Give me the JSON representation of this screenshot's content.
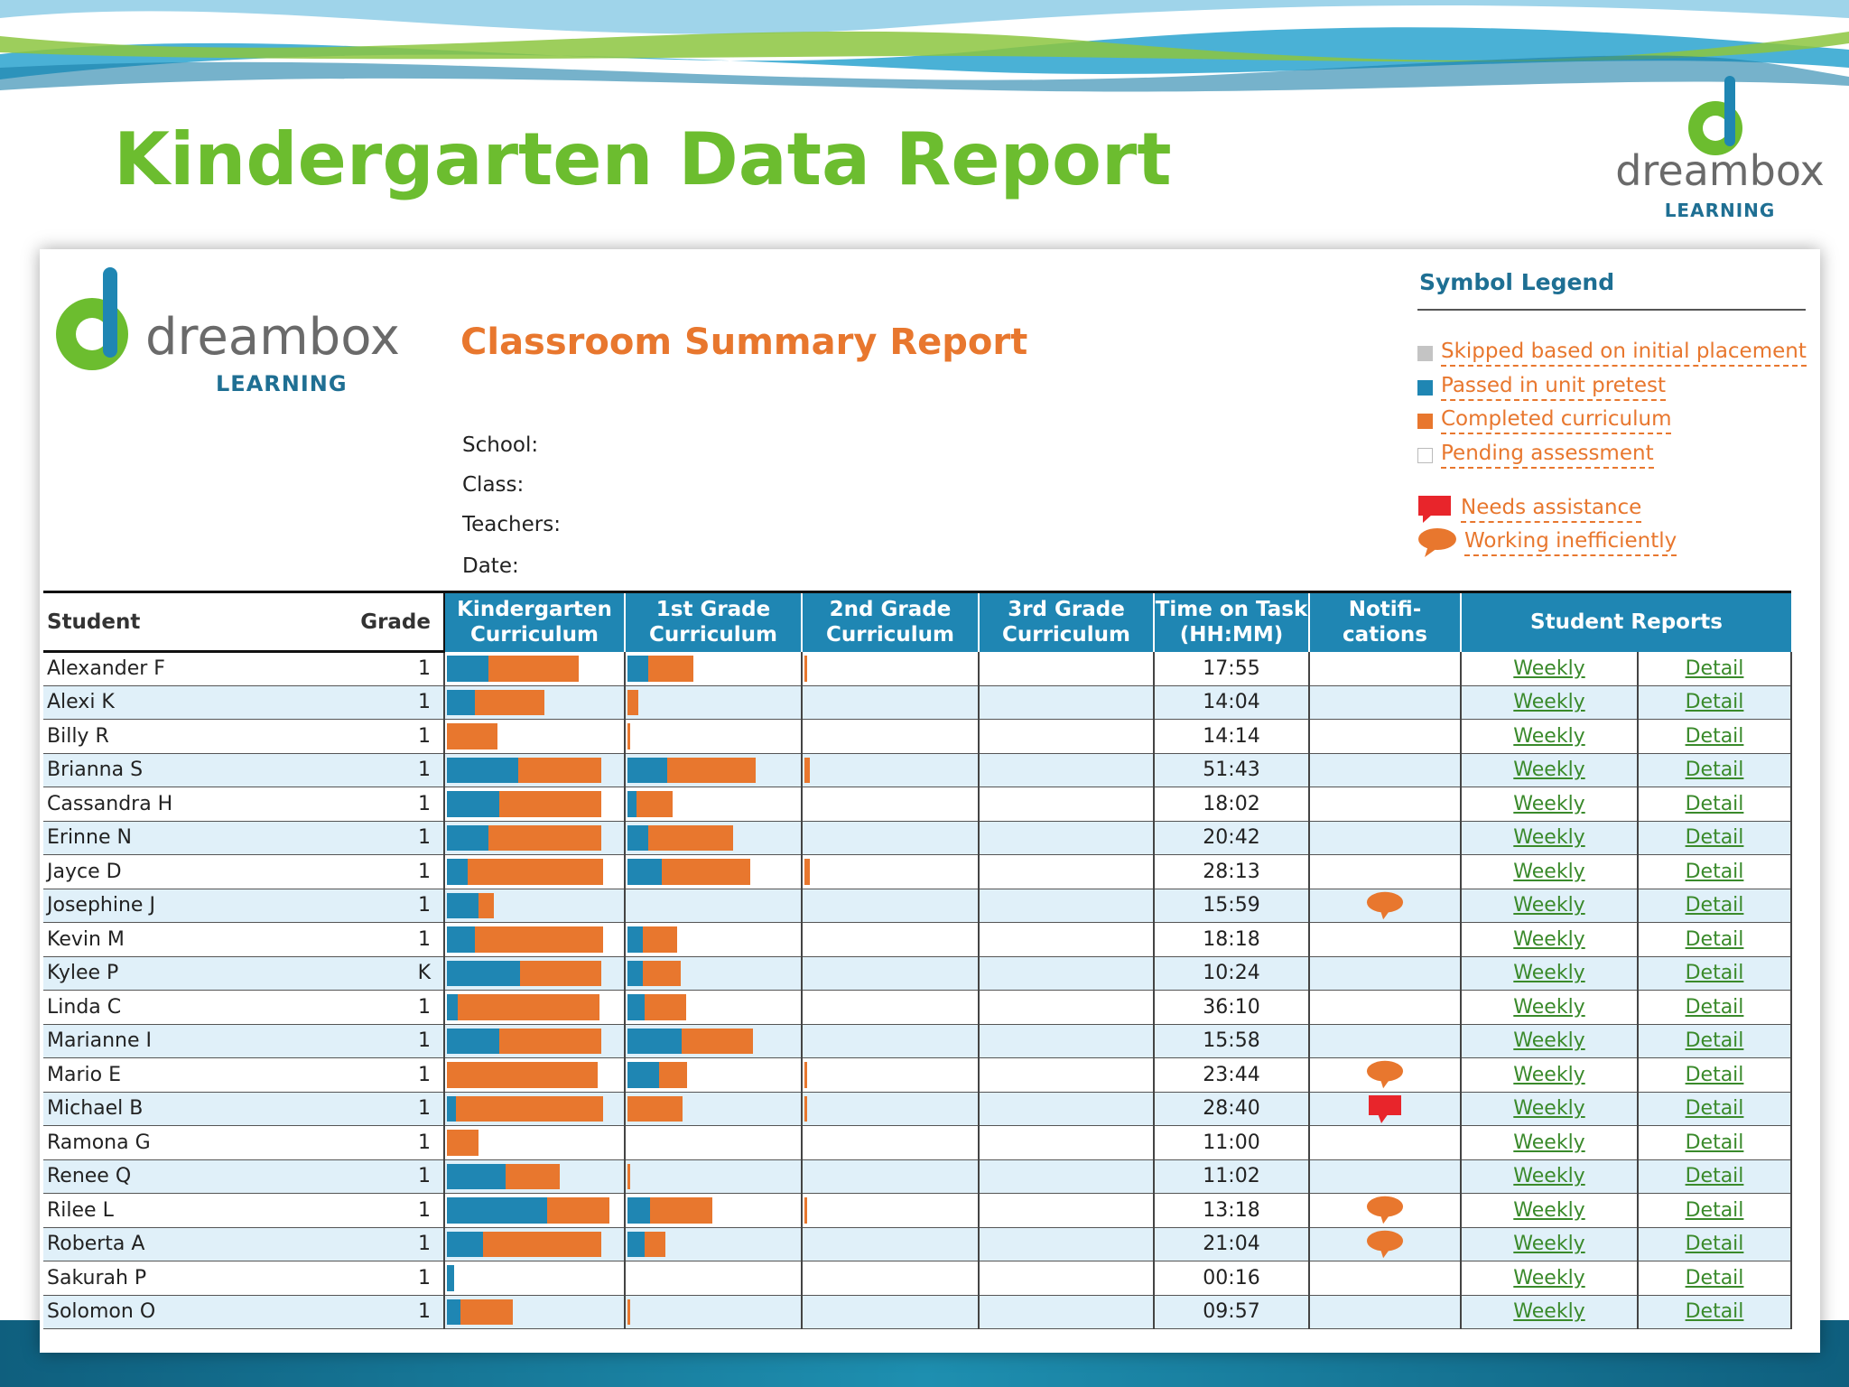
{
  "slide": {
    "title": "Kindergarten Data Report",
    "brand": {
      "name": "dreambox",
      "sub": "LEARNING"
    }
  },
  "report": {
    "title": "Classroom Summary Report",
    "meta": [
      {
        "label": "School:"
      },
      {
        "label": "Class:"
      },
      {
        "label": "Teachers:"
      },
      {
        "label": "Date:"
      }
    ]
  },
  "legend": {
    "title": "Symbol Legend",
    "items": [
      {
        "label": "Skipped based on initial placement",
        "color": "#c4c4c4",
        "icon": "gray-square"
      },
      {
        "label": "Passed in unit pretest",
        "color": "#1f86b3",
        "icon": "blue-square"
      },
      {
        "label": "Completed curriculum",
        "color": "#e8772e",
        "icon": "orange-square"
      },
      {
        "label": "Pending assessment",
        "color": "#ffffff",
        "icon": "empty-square"
      },
      {
        "label": "Needs assistance",
        "color": "#e8252b",
        "icon": "red-flag-bubble"
      },
      {
        "label": "Working inefficiently",
        "color": "#e8772e",
        "icon": "orange-speech-bubble"
      }
    ]
  },
  "table": {
    "headers": {
      "student": "Student",
      "grade": "Grade",
      "k": [
        "Kindergarten",
        "Curriculum"
      ],
      "g1": [
        "1st Grade",
        "Curriculum"
      ],
      "g2": [
        "2nd Grade",
        "Curriculum"
      ],
      "g3": [
        "3rd Grade",
        "Curriculum"
      ],
      "time": [
        "Time on Task",
        "(HH:MM)"
      ],
      "notif": [
        "Notifi-",
        "cations"
      ],
      "reports": "Student Reports"
    },
    "link_weekly": "Weekly",
    "link_detail": "Detail",
    "rows": [
      {
        "name": "Alexander F",
        "grade": "1",
        "k": [
          0.24,
          0.52
        ],
        "g1": [
          0.12,
          0.26
        ],
        "g2": [
          0,
          0.02
        ],
        "time": "17:55",
        "notif": ""
      },
      {
        "name": "Alexi K",
        "grade": "1",
        "k": [
          0.16,
          0.4
        ],
        "g1": [
          0,
          0.06
        ],
        "g2": [
          0,
          0
        ],
        "time": "14:04",
        "notif": ""
      },
      {
        "name": "Billy R",
        "grade": "1",
        "k": [
          0,
          0.29
        ],
        "g1": [
          0,
          0.01
        ],
        "g2": [
          0,
          0
        ],
        "time": "14:14",
        "notif": ""
      },
      {
        "name": "Brianna S",
        "grade": "1",
        "k": [
          0.41,
          0.48
        ],
        "g1": [
          0.23,
          0.51
        ],
        "g2": [
          0,
          0.03
        ],
        "time": "51:43",
        "notif": ""
      },
      {
        "name": "Cassandra H",
        "grade": "1",
        "k": [
          0.3,
          0.59
        ],
        "g1": [
          0.05,
          0.21
        ],
        "g2": [
          0,
          0
        ],
        "time": "18:02",
        "notif": ""
      },
      {
        "name": "Erinne N",
        "grade": "1",
        "k": [
          0.24,
          0.65
        ],
        "g1": [
          0.12,
          0.49
        ],
        "g2": [
          0,
          0
        ],
        "time": "20:42",
        "notif": ""
      },
      {
        "name": "Jayce D",
        "grade": "1",
        "k": [
          0.12,
          0.78
        ],
        "g1": [
          0.2,
          0.51
        ],
        "g2": [
          0,
          0.03
        ],
        "time": "28:13",
        "notif": ""
      },
      {
        "name": "Josephine J",
        "grade": "1",
        "k": [
          0.18,
          0.09
        ],
        "g1": [
          0,
          0
        ],
        "g2": [
          0,
          0
        ],
        "time": "15:59",
        "notif": "working"
      },
      {
        "name": "Kevin M",
        "grade": "1",
        "k": [
          0.16,
          0.74
        ],
        "g1": [
          0.09,
          0.2
        ],
        "g2": [
          0,
          0
        ],
        "time": "18:18",
        "notif": ""
      },
      {
        "name": "Kylee P",
        "grade": "K",
        "k": [
          0.42,
          0.47
        ],
        "g1": [
          0.09,
          0.22
        ],
        "g2": [
          0,
          0
        ],
        "time": "10:24",
        "notif": ""
      },
      {
        "name": "Linda C",
        "grade": "1",
        "k": [
          0.06,
          0.82
        ],
        "g1": [
          0.1,
          0.24
        ],
        "g2": [
          0,
          0
        ],
        "time": "36:10",
        "notif": ""
      },
      {
        "name": "Marianne I",
        "grade": "1",
        "k": [
          0.3,
          0.59
        ],
        "g1": [
          0.31,
          0.41
        ],
        "g2": [
          0,
          0
        ],
        "time": "15:58",
        "notif": ""
      },
      {
        "name": "Mario E",
        "grade": "1",
        "k": [
          0,
          0.87
        ],
        "g1": [
          0.18,
          0.16
        ],
        "g2": [
          0,
          0.02
        ],
        "time": "23:44",
        "notif": "working"
      },
      {
        "name": "Michael B",
        "grade": "1",
        "k": [
          0.05,
          0.85
        ],
        "g1": [
          0,
          0.32
        ],
        "g2": [
          0,
          0.02
        ],
        "time": "28:40",
        "notif": "needs"
      },
      {
        "name": "Ramona G",
        "grade": "1",
        "k": [
          0,
          0.18
        ],
        "g1": [
          0,
          0
        ],
        "g2": [
          0,
          0
        ],
        "time": "11:00",
        "notif": ""
      },
      {
        "name": "Renee Q",
        "grade": "1",
        "k": [
          0.34,
          0.31
        ],
        "g1": [
          0,
          0.01
        ],
        "g2": [
          0,
          0
        ],
        "time": "11:02",
        "notif": ""
      },
      {
        "name": "Rilee L",
        "grade": "1",
        "k": [
          0.58,
          0.36
        ],
        "g1": [
          0.13,
          0.36
        ],
        "g2": [
          0,
          0.02
        ],
        "time": "13:18",
        "notif": "working"
      },
      {
        "name": "Roberta A",
        "grade": "1",
        "k": [
          0.21,
          0.68
        ],
        "g1": [
          0.1,
          0.12
        ],
        "g2": [
          0,
          0
        ],
        "time": "21:04",
        "notif": "working"
      },
      {
        "name": "Sakurah P",
        "grade": "1",
        "k": [
          0.04,
          0
        ],
        "g1": [
          0,
          0
        ],
        "g2": [
          0,
          0
        ],
        "time": "00:16",
        "notif": ""
      },
      {
        "name": "Solomon O",
        "grade": "1",
        "k": [
          0.08,
          0.3
        ],
        "g1": [
          0,
          0.01
        ],
        "g2": [
          0,
          0
        ],
        "time": "09:57",
        "notif": ""
      }
    ]
  }
}
